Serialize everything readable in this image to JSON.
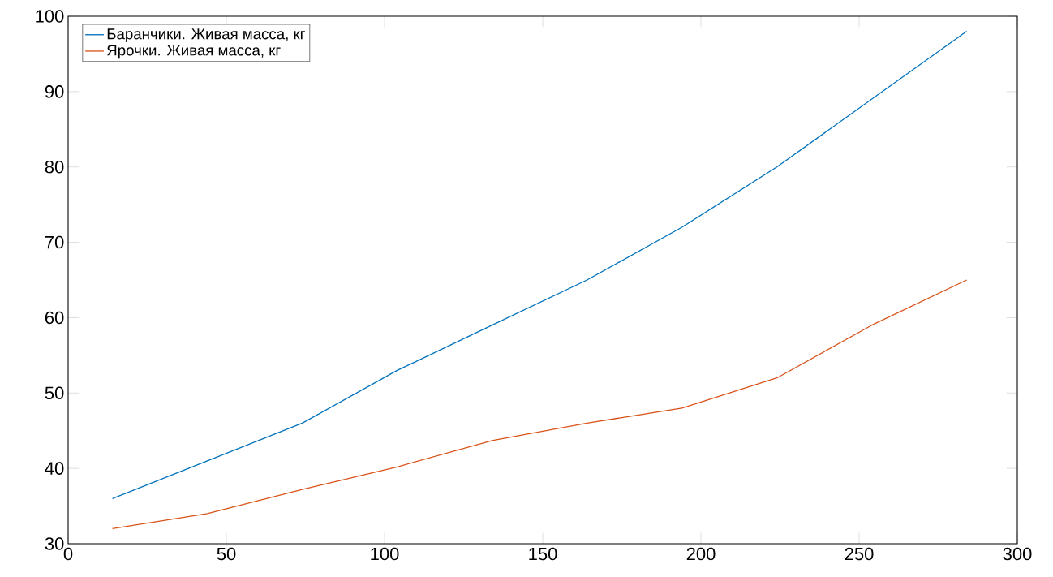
{
  "chart_data": {
    "type": "line",
    "x": [
      14,
      44,
      74,
      104,
      134,
      164,
      194,
      224,
      254,
      284
    ],
    "series": [
      {
        "name": "Баранчики. Живая масса, кг",
        "color": "#0072bd",
        "values": [
          36,
          41,
          46,
          53,
          59,
          65,
          72,
          80,
          89,
          98
        ]
      },
      {
        "name": "Ярочки. Живая масса, кг",
        "color": "#d95319",
        "values": [
          32,
          34,
          37.2,
          40.2,
          43.7,
          46,
          48,
          52,
          59,
          65
        ]
      }
    ],
    "xlim": [
      0,
      300
    ],
    "xticks": [
      0,
      50,
      100,
      150,
      200,
      250,
      300
    ],
    "ylim": [
      30,
      100
    ],
    "yticks": [
      30,
      40,
      50,
      60,
      70,
      80,
      90,
      100
    ],
    "legend": "top left"
  }
}
